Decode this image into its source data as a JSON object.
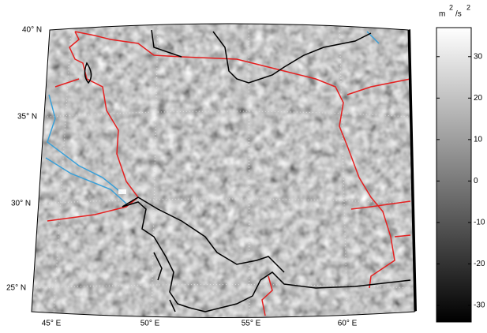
{
  "map": {
    "lat_labels": [
      "40° N",
      "35° N",
      "30° N",
      "25° N"
    ],
    "lon_labels": [
      "45° E",
      "50° E",
      "55° E",
      "60° E"
    ]
  },
  "colorbar": {
    "unit_parts": [
      "m",
      "2",
      "/s",
      "2"
    ],
    "lim": [
      -34,
      37
    ],
    "ticks": [
      30,
      20,
      10,
      0,
      -10,
      -20,
      -30
    ]
  }
}
